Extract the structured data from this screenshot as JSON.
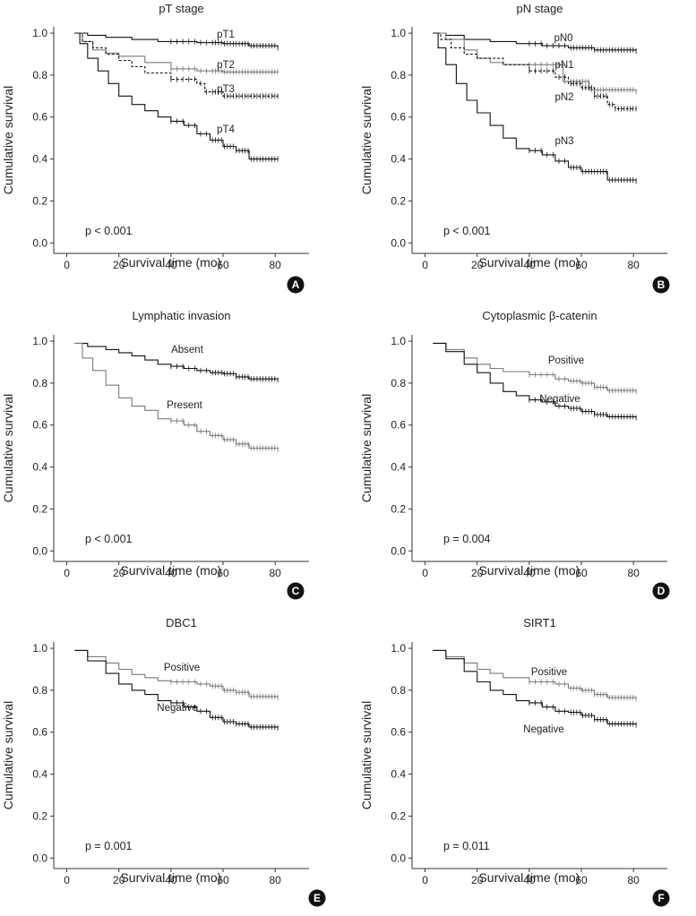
{
  "figure": {
    "description": "Kaplan-Meier survival curves"
  },
  "chart_data": [
    {
      "type": "line",
      "panel": "A",
      "title": "pT stage",
      "xlabel": "Survival time (mo)",
      "ylabel": "Cumulative survival",
      "xticks": [
        0,
        20,
        40,
        60,
        80
      ],
      "yticks": [
        "0.0",
        "0.2",
        "0.4",
        "0.6",
        "0.8",
        "1.0"
      ],
      "xlim": [
        -5,
        93
      ],
      "ylim": [
        -0.05,
        1.03
      ],
      "pvalue": "p < 0.001",
      "series": [
        {
          "name": "pT1",
          "style": "solid",
          "color": "#111111",
          "points": [
            [
              3,
              1.0
            ],
            [
              8,
              0.99
            ],
            [
              15,
              0.98
            ],
            [
              25,
              0.97
            ],
            [
              35,
              0.96
            ],
            [
              50,
              0.955
            ],
            [
              60,
              0.95
            ],
            [
              70,
              0.94
            ],
            [
              81,
              0.93
            ]
          ]
        },
        {
          "name": "pT2",
          "style": "solid",
          "color": "#7a7a7a",
          "points": [
            [
              3,
              1.0
            ],
            [
              6,
              0.96
            ],
            [
              10,
              0.92
            ],
            [
              15,
              0.905
            ],
            [
              20,
              0.89
            ],
            [
              30,
              0.86
            ],
            [
              40,
              0.83
            ],
            [
              50,
              0.82
            ],
            [
              60,
              0.815
            ],
            [
              81,
              0.815
            ]
          ]
        },
        {
          "name": "pT3",
          "style": "dashed",
          "color": "#111111",
          "points": [
            [
              3,
              1.0
            ],
            [
              6,
              0.96
            ],
            [
              10,
              0.93
            ],
            [
              15,
              0.9
            ],
            [
              20,
              0.87
            ],
            [
              25,
              0.84
            ],
            [
              30,
              0.81
            ],
            [
              40,
              0.78
            ],
            [
              50,
              0.76
            ],
            [
              53,
              0.72
            ],
            [
              60,
              0.7
            ],
            [
              81,
              0.7
            ]
          ]
        },
        {
          "name": "pT4",
          "style": "solid",
          "color": "#111111",
          "points": [
            [
              3,
              1.0
            ],
            [
              5,
              0.95
            ],
            [
              8,
              0.88
            ],
            [
              12,
              0.82
            ],
            [
              16,
              0.76
            ],
            [
              20,
              0.7
            ],
            [
              25,
              0.66
            ],
            [
              30,
              0.63
            ],
            [
              35,
              0.6
            ],
            [
              40,
              0.58
            ],
            [
              45,
              0.56
            ],
            [
              50,
              0.52
            ],
            [
              55,
              0.49
            ],
            [
              60,
              0.46
            ],
            [
              65,
              0.44
            ],
            [
              70,
              0.4
            ],
            [
              81,
              0.4
            ]
          ]
        }
      ]
    },
    {
      "type": "line",
      "panel": "B",
      "title": "pN stage",
      "xlabel": "Survival time (mo)",
      "ylabel": "Cumulative survival",
      "xticks": [
        0,
        20,
        40,
        60,
        80
      ],
      "yticks": [
        "0.0",
        "0.2",
        "0.4",
        "0.6",
        "0.8",
        "1.0"
      ],
      "xlim": [
        -5,
        93
      ],
      "ylim": [
        -0.05,
        1.03
      ],
      "pvalue": "p < 0.001",
      "series": [
        {
          "name": "pN0",
          "style": "solid",
          "color": "#111111",
          "points": [
            [
              3,
              1.0
            ],
            [
              8,
              0.99
            ],
            [
              15,
              0.97
            ],
            [
              25,
              0.96
            ],
            [
              35,
              0.95
            ],
            [
              45,
              0.94
            ],
            [
              55,
              0.93
            ],
            [
              65,
              0.92
            ],
            [
              81,
              0.915
            ]
          ]
        },
        {
          "name": "pN1",
          "style": "solid",
          "color": "#7a7a7a",
          "points": [
            [
              3,
              1.0
            ],
            [
              8,
              0.97
            ],
            [
              15,
              0.92
            ],
            [
              20,
              0.88
            ],
            [
              25,
              0.86
            ],
            [
              30,
              0.85
            ],
            [
              40,
              0.85
            ],
            [
              50,
              0.85
            ],
            [
              53,
              0.77
            ],
            [
              60,
              0.77
            ],
            [
              63,
              0.73
            ],
            [
              81,
              0.72
            ]
          ]
        },
        {
          "name": "pN2",
          "style": "dashed",
          "color": "#111111",
          "points": [
            [
              3,
              1.0
            ],
            [
              6,
              0.97
            ],
            [
              10,
              0.93
            ],
            [
              15,
              0.9
            ],
            [
              20,
              0.88
            ],
            [
              30,
              0.85
            ],
            [
              40,
              0.82
            ],
            [
              50,
              0.79
            ],
            [
              55,
              0.76
            ],
            [
              60,
              0.74
            ],
            [
              65,
              0.7
            ],
            [
              70,
              0.66
            ],
            [
              73,
              0.64
            ],
            [
              81,
              0.64
            ]
          ]
        },
        {
          "name": "pN3",
          "style": "solid",
          "color": "#111111",
          "points": [
            [
              3,
              1.0
            ],
            [
              5,
              0.93
            ],
            [
              8,
              0.85
            ],
            [
              12,
              0.76
            ],
            [
              16,
              0.68
            ],
            [
              20,
              0.62
            ],
            [
              25,
              0.56
            ],
            [
              30,
              0.5
            ],
            [
              35,
              0.45
            ],
            [
              40,
              0.44
            ],
            [
              45,
              0.42
            ],
            [
              50,
              0.39
            ],
            [
              55,
              0.36
            ],
            [
              60,
              0.34
            ],
            [
              65,
              0.34
            ],
            [
              70,
              0.3
            ],
            [
              81,
              0.295
            ]
          ]
        }
      ]
    },
    {
      "type": "line",
      "panel": "C",
      "title": "Lymphatic invasion",
      "xlabel": "Survival time (mo)",
      "ylabel": "Cumulative survival",
      "xticks": [
        0,
        20,
        40,
        60,
        80
      ],
      "yticks": [
        "0.0",
        "0.2",
        "0.4",
        "0.6",
        "0.8",
        "1.0"
      ],
      "xlim": [
        -5,
        93
      ],
      "ylim": [
        -0.05,
        1.03
      ],
      "pvalue": "p < 0.001",
      "series": [
        {
          "name": "Absent",
          "style": "solid",
          "color": "#111111",
          "points": [
            [
              3,
              0.99
            ],
            [
              8,
              0.975
            ],
            [
              15,
              0.96
            ],
            [
              20,
              0.945
            ],
            [
              25,
              0.93
            ],
            [
              30,
              0.91
            ],
            [
              35,
              0.89
            ],
            [
              40,
              0.88
            ],
            [
              45,
              0.87
            ],
            [
              50,
              0.86
            ],
            [
              55,
              0.85
            ],
            [
              60,
              0.845
            ],
            [
              65,
              0.83
            ],
            [
              70,
              0.82
            ],
            [
              81,
              0.815
            ]
          ]
        },
        {
          "name": "Present",
          "style": "solid",
          "color": "#7a7a7a",
          "points": [
            [
              3,
              0.99
            ],
            [
              6,
              0.92
            ],
            [
              10,
              0.86
            ],
            [
              15,
              0.79
            ],
            [
              20,
              0.73
            ],
            [
              25,
              0.69
            ],
            [
              30,
              0.67
            ],
            [
              35,
              0.63
            ],
            [
              40,
              0.62
            ],
            [
              45,
              0.6
            ],
            [
              50,
              0.57
            ],
            [
              55,
              0.55
            ],
            [
              60,
              0.53
            ],
            [
              65,
              0.51
            ],
            [
              70,
              0.49
            ],
            [
              81,
              0.485
            ]
          ]
        }
      ]
    },
    {
      "type": "line",
      "panel": "D",
      "title": "Cytoplasmic β-catenin",
      "xlabel": "Survival time (mo)",
      "ylabel": "Cumulative survival",
      "xticks": [
        0,
        20,
        40,
        60,
        80
      ],
      "yticks": [
        "0.0",
        "0.2",
        "0.4",
        "0.6",
        "0.8",
        "1.0"
      ],
      "xlim": [
        -5,
        93
      ],
      "ylim": [
        -0.05,
        1.03
      ],
      "pvalue": "p = 0.004",
      "series": [
        {
          "name": "Positive",
          "style": "solid",
          "color": "#7a7a7a",
          "points": [
            [
              3,
              0.99
            ],
            [
              8,
              0.96
            ],
            [
              15,
              0.92
            ],
            [
              20,
              0.89
            ],
            [
              25,
              0.87
            ],
            [
              30,
              0.855
            ],
            [
              40,
              0.84
            ],
            [
              50,
              0.82
            ],
            [
              55,
              0.81
            ],
            [
              60,
              0.8
            ],
            [
              65,
              0.78
            ],
            [
              70,
              0.765
            ],
            [
              81,
              0.76
            ]
          ]
        },
        {
          "name": "Negative",
          "style": "solid",
          "color": "#111111",
          "points": [
            [
              3,
              0.99
            ],
            [
              8,
              0.95
            ],
            [
              15,
              0.89
            ],
            [
              20,
              0.85
            ],
            [
              25,
              0.8
            ],
            [
              30,
              0.76
            ],
            [
              35,
              0.74
            ],
            [
              40,
              0.72
            ],
            [
              45,
              0.71
            ],
            [
              50,
              0.69
            ],
            [
              55,
              0.68
            ],
            [
              60,
              0.665
            ],
            [
              65,
              0.65
            ],
            [
              70,
              0.64
            ],
            [
              81,
              0.635
            ]
          ]
        }
      ]
    },
    {
      "type": "line",
      "panel": "E",
      "title": "DBC1",
      "xlabel": "Survival time (mo)",
      "ylabel": "Cumulative survival",
      "xticks": [
        0,
        20,
        40,
        60,
        80
      ],
      "yticks": [
        "0.0",
        "0.2",
        "0.4",
        "0.6",
        "0.8",
        "1.0"
      ],
      "xlim": [
        -5,
        93
      ],
      "ylim": [
        -0.05,
        1.03
      ],
      "pvalue": "p = 0.001",
      "series": [
        {
          "name": "Positive",
          "style": "solid",
          "color": "#7a7a7a",
          "points": [
            [
              3,
              0.99
            ],
            [
              8,
              0.96
            ],
            [
              15,
              0.93
            ],
            [
              20,
              0.9
            ],
            [
              25,
              0.875
            ],
            [
              30,
              0.86
            ],
            [
              35,
              0.845
            ],
            [
              40,
              0.84
            ],
            [
              50,
              0.83
            ],
            [
              55,
              0.82
            ],
            [
              60,
              0.8
            ],
            [
              65,
              0.79
            ],
            [
              70,
              0.77
            ],
            [
              81,
              0.765
            ]
          ]
        },
        {
          "name": "Negative",
          "style": "solid",
          "color": "#111111",
          "points": [
            [
              3,
              0.99
            ],
            [
              8,
              0.94
            ],
            [
              15,
              0.88
            ],
            [
              20,
              0.83
            ],
            [
              25,
              0.8
            ],
            [
              30,
              0.78
            ],
            [
              35,
              0.75
            ],
            [
              40,
              0.74
            ],
            [
              45,
              0.72
            ],
            [
              50,
              0.7
            ],
            [
              55,
              0.67
            ],
            [
              60,
              0.65
            ],
            [
              65,
              0.64
            ],
            [
              70,
              0.625
            ],
            [
              81,
              0.62
            ]
          ]
        }
      ]
    },
    {
      "type": "line",
      "panel": "F",
      "title": "SIRT1",
      "xlabel": "Survival time (mo)",
      "ylabel": "Cumulative survival",
      "xticks": [
        0,
        20,
        40,
        60,
        80
      ],
      "yticks": [
        "0.0",
        "0.2",
        "0.4",
        "0.6",
        "0.8",
        "1.0"
      ],
      "xlim": [
        -5,
        93
      ],
      "ylim": [
        -0.05,
        1.03
      ],
      "pvalue": "p = 0.011",
      "series": [
        {
          "name": "Positive",
          "style": "solid",
          "color": "#7a7a7a",
          "points": [
            [
              3,
              0.99
            ],
            [
              8,
              0.96
            ],
            [
              15,
              0.93
            ],
            [
              20,
              0.9
            ],
            [
              25,
              0.88
            ],
            [
              30,
              0.86
            ],
            [
              40,
              0.84
            ],
            [
              50,
              0.83
            ],
            [
              55,
              0.81
            ],
            [
              60,
              0.8
            ],
            [
              65,
              0.78
            ],
            [
              70,
              0.765
            ],
            [
              81,
              0.76
            ]
          ]
        },
        {
          "name": "Negative",
          "style": "solid",
          "color": "#111111",
          "points": [
            [
              3,
              0.99
            ],
            [
              8,
              0.95
            ],
            [
              15,
              0.89
            ],
            [
              20,
              0.84
            ],
            [
              25,
              0.8
            ],
            [
              30,
              0.78
            ],
            [
              35,
              0.75
            ],
            [
              40,
              0.74
            ],
            [
              45,
              0.72
            ],
            [
              50,
              0.7
            ],
            [
              55,
              0.695
            ],
            [
              60,
              0.68
            ],
            [
              65,
              0.66
            ],
            [
              70,
              0.64
            ],
            [
              81,
              0.635
            ]
          ]
        }
      ]
    }
  ]
}
